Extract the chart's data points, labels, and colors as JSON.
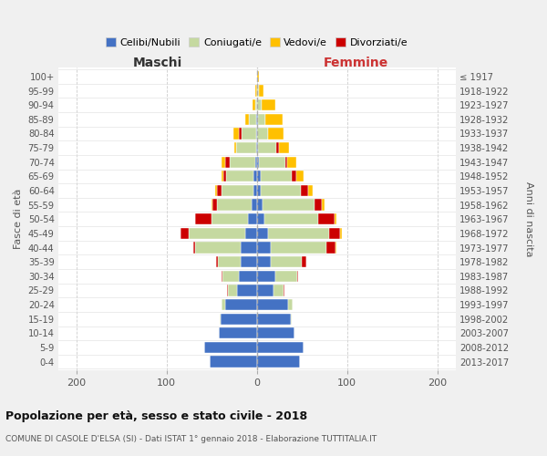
{
  "age_groups": [
    "0-4",
    "5-9",
    "10-14",
    "15-19",
    "20-24",
    "25-29",
    "30-34",
    "35-39",
    "40-44",
    "45-49",
    "50-54",
    "55-59",
    "60-64",
    "65-69",
    "70-74",
    "75-79",
    "80-84",
    "85-89",
    "90-94",
    "95-99",
    "100+"
  ],
  "birth_years": [
    "2013-2017",
    "2008-2012",
    "2003-2007",
    "1998-2002",
    "1993-1997",
    "1988-1992",
    "1983-1987",
    "1978-1982",
    "1973-1977",
    "1968-1972",
    "1963-1967",
    "1958-1962",
    "1953-1957",
    "1948-1952",
    "1943-1947",
    "1938-1942",
    "1933-1937",
    "1928-1932",
    "1923-1927",
    "1918-1922",
    "≤ 1917"
  ],
  "maschi": {
    "celibe": [
      52,
      58,
      42,
      40,
      35,
      22,
      20,
      18,
      18,
      13,
      10,
      6,
      4,
      4,
      2,
      1,
      1,
      1,
      0,
      0,
      0
    ],
    "coniugato": [
      0,
      0,
      0,
      1,
      4,
      10,
      18,
      25,
      50,
      62,
      40,
      38,
      35,
      30,
      28,
      22,
      16,
      8,
      2,
      0,
      0
    ],
    "vedovo": [
      0,
      0,
      0,
      0,
      0,
      0,
      0,
      0,
      0,
      0,
      0,
      1,
      2,
      2,
      4,
      2,
      6,
      4,
      3,
      2,
      0
    ],
    "divorziato": [
      0,
      0,
      0,
      0,
      0,
      1,
      1,
      2,
      2,
      10,
      18,
      5,
      5,
      3,
      5,
      0,
      3,
      0,
      0,
      0,
      0
    ]
  },
  "femmine": {
    "nubile": [
      48,
      52,
      42,
      38,
      35,
      18,
      20,
      15,
      15,
      12,
      8,
      6,
      4,
      4,
      2,
      1,
      0,
      1,
      0,
      0,
      0
    ],
    "coniugata": [
      0,
      0,
      0,
      1,
      5,
      12,
      25,
      35,
      62,
      68,
      60,
      58,
      45,
      35,
      30,
      20,
      12,
      8,
      5,
      2,
      0
    ],
    "vedova": [
      0,
      0,
      0,
      0,
      0,
      0,
      0,
      0,
      1,
      2,
      2,
      3,
      5,
      8,
      10,
      12,
      18,
      20,
      15,
      5,
      2
    ],
    "divorziata": [
      0,
      0,
      0,
      0,
      0,
      1,
      1,
      5,
      10,
      12,
      18,
      8,
      8,
      5,
      2,
      3,
      0,
      0,
      0,
      0,
      0
    ]
  },
  "colors": {
    "celibe": "#4472c4",
    "coniugato": "#c5d9a0",
    "vedovo": "#ffc000",
    "divorziato": "#cc0000"
  },
  "xlim": 220,
  "title": "Popolazione per età, sesso e stato civile - 2018",
  "subtitle": "COMUNE DI CASOLE D'ELSA (SI) - Dati ISTAT 1° gennaio 2018 - Elaborazione TUTTITALIA.IT",
  "ylabel": "Fasce di età",
  "ylabel_right": "Anni di nascita",
  "legend_labels": [
    "Celibi/Nubili",
    "Coniugati/e",
    "Vedovi/e",
    "Divorziati/e"
  ],
  "bg_color": "#f0f0f0",
  "plot_bg_color": "#ffffff",
  "maschi_label_color": "#333333",
  "femmine_label_color": "#cc3333"
}
